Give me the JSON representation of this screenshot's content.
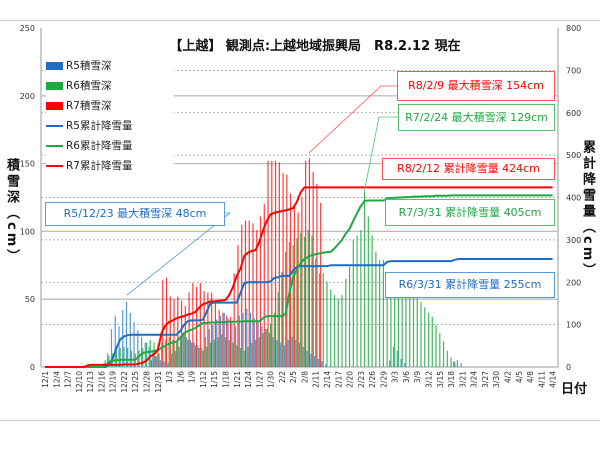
{
  "chart_data": {
    "type": "bar+line",
    "title": "【上越】 観測点:上越地域振興局　R8.2.12 現在",
    "xlabel": "日付",
    "ylabel_left": "積雪深（cm）",
    "ylabel_right": "累計降雪量（cm）",
    "ylim_left": [
      0,
      250
    ],
    "ylim_right": [
      0,
      800
    ],
    "yticks_left": [
      "0",
      "50",
      "100",
      "150",
      "200",
      "250"
    ],
    "yticks_right": [
      "0",
      "100",
      "200",
      "300",
      "400",
      "500",
      "600",
      "700",
      "800"
    ],
    "grid": true,
    "legend_position": "top-left",
    "xtick_labels": [
      "12/1",
      "12/4",
      "12/7",
      "12/10",
      "12/13",
      "12/16",
      "12/19",
      "12/22",
      "12/25",
      "12/28",
      "12/31",
      "1/3",
      "1/6",
      "1/9",
      "1/12",
      "1/15",
      "1/18",
      "1/21",
      "1/24",
      "1/27",
      "1/30",
      "2/2",
      "2/5",
      "2/8",
      "2/11",
      "2/14",
      "2/17",
      "2/20",
      "2/23",
      "2/26",
      "2/29",
      "3/3",
      "3/6",
      "3/9",
      "3/12",
      "3/15",
      "3/18",
      "3/21",
      "3/24",
      "3/27",
      "3/30",
      "4/2",
      "4/5",
      "4/8",
      "4/11",
      "4/14"
    ],
    "x_first_date": "12/1",
    "x_last_date": "4/14",
    "series": [
      {
        "name": "R5積雪深",
        "kind": "bar",
        "axis": "left",
        "color": "#3f8fd8",
        "values": [
          0,
          0,
          0,
          0,
          0,
          0,
          0,
          0,
          0,
          0,
          0,
          0,
          0,
          0,
          0,
          0,
          3,
          10,
          28,
          38,
          30,
          42,
          48,
          40,
          33,
          27,
          22,
          18,
          15,
          12,
          8,
          5,
          4,
          3,
          10,
          12,
          15,
          24,
          22,
          20,
          18,
          16,
          14,
          22,
          28,
          31,
          35,
          38,
          40,
          36,
          33,
          30,
          38,
          40,
          43,
          40,
          36,
          33,
          30,
          28,
          25,
          22,
          20,
          18,
          16,
          20,
          22,
          20,
          18,
          15,
          12,
          10,
          8,
          6,
          4,
          2,
          0,
          0,
          0,
          0,
          0,
          0,
          0,
          0,
          0,
          0,
          0,
          0,
          0,
          0,
          0,
          0,
          5,
          15,
          12,
          6,
          3,
          0,
          0,
          0,
          0,
          0,
          0,
          0,
          0,
          0,
          0,
          0,
          0,
          4,
          5,
          3,
          0,
          0,
          0,
          0,
          0,
          0,
          0,
          0,
          0,
          0,
          0,
          0,
          0,
          0,
          0,
          0,
          0,
          0,
          0,
          0,
          0,
          0,
          0
        ]
      },
      {
        "name": "R6積雪深",
        "kind": "bar",
        "axis": "left",
        "color": "#2fb04f",
        "values": [
          0,
          0,
          0,
          0,
          0,
          0,
          0,
          0,
          0,
          0,
          0,
          0,
          0,
          0,
          0,
          0,
          5,
          8,
          10,
          12,
          14,
          15,
          14,
          12,
          10,
          12,
          14,
          18,
          20,
          18,
          16,
          18,
          20,
          22,
          20,
          18,
          22,
          25,
          20,
          18,
          16,
          14,
          12,
          15,
          18,
          20,
          22,
          24,
          22,
          20,
          18,
          16,
          14,
          12,
          15,
          18,
          20,
          22,
          25,
          28,
          32,
          40,
          55,
          70,
          85,
          92,
          90,
          95,
          99,
          96,
          101,
          97,
          80,
          69,
          69,
          63,
          57,
          53,
          50,
          53,
          65,
          74,
          94,
          97,
          101,
          129,
          111,
          97,
          85,
          79,
          79,
          69,
          64,
          62,
          60,
          59,
          57,
          55,
          53,
          52,
          48,
          44,
          40,
          37,
          31,
          25,
          19,
          12,
          7,
          4,
          0,
          0,
          0,
          0,
          0,
          0,
          0,
          0,
          0,
          0,
          0,
          0,
          0,
          0,
          0,
          0,
          0,
          0,
          0,
          0,
          0,
          0,
          0,
          0,
          0,
          0
        ]
      },
      {
        "name": "R7積雪深",
        "kind": "bar",
        "axis": "left",
        "color": "#ff1a1a",
        "values": [
          0,
          0,
          0,
          0,
          0,
          0,
          0,
          0,
          0,
          0,
          0,
          2,
          0,
          0,
          0,
          0,
          0,
          0,
          0,
          0,
          0,
          0,
          0,
          0,
          0,
          0,
          0,
          0,
          5,
          8,
          10,
          64,
          66,
          52,
          50,
          52,
          49,
          45,
          55,
          62,
          59,
          62,
          56,
          55,
          55,
          48,
          42,
          40,
          38,
          37,
          69,
          90,
          105,
          108,
          108,
          106,
          101,
          111,
          120,
          152,
          152,
          152,
          151,
          143,
          142,
          128,
          120,
          114,
          125,
          152,
          154,
          144,
          135,
          121
        ]
      },
      {
        "name": "R5累計降雪量",
        "kind": "line",
        "axis": "right",
        "color": "#1f6cc4",
        "values": [
          0,
          0,
          0,
          0,
          0,
          0,
          0,
          0,
          0,
          0,
          0,
          0,
          0,
          0,
          0,
          0,
          0,
          5,
          20,
          45,
          65,
          72,
          75,
          76,
          76,
          76,
          76,
          76,
          76,
          76,
          76,
          76,
          76,
          76,
          76,
          76,
          85,
          100,
          108,
          110,
          110,
          110,
          112,
          130,
          150,
          152,
          152,
          152,
          152,
          152,
          152,
          152,
          175,
          198,
          200,
          200,
          200,
          200,
          200,
          200,
          202,
          210,
          212,
          215,
          215,
          215,
          228,
          236,
          238,
          238,
          238,
          238,
          238,
          238,
          238,
          238,
          240,
          240,
          240,
          240,
          240,
          240,
          240,
          240,
          240,
          240,
          240,
          240,
          240,
          240,
          240,
          248,
          250,
          250,
          250,
          250,
          250,
          250,
          250,
          250,
          250,
          250,
          250,
          250,
          250,
          250,
          250,
          250,
          250,
          253,
          255,
          255,
          255,
          255,
          255,
          255,
          255,
          255,
          255,
          255,
          255,
          255,
          255,
          255,
          255,
          255,
          255,
          255,
          255,
          255,
          255,
          255,
          255,
          255,
          255,
          255
        ]
      },
      {
        "name": "R6累計降雪量",
        "kind": "line",
        "axis": "right",
        "color": "#1fa843",
        "values": [
          0,
          0,
          0,
          0,
          0,
          0,
          0,
          0,
          0,
          0,
          0,
          0,
          0,
          0,
          0,
          0,
          3,
          12,
          15,
          16,
          17,
          17,
          17,
          17,
          17,
          25,
          33,
          35,
          36,
          38,
          40,
          45,
          50,
          55,
          58,
          60,
          70,
          80,
          85,
          88,
          92,
          98,
          104,
          104,
          105,
          105,
          106,
          106,
          106,
          107,
          107,
          107,
          107,
          108,
          108,
          108,
          108,
          108,
          115,
          120,
          120,
          120,
          120,
          120,
          125,
          175,
          212,
          230,
          245,
          255,
          260,
          264,
          266,
          268,
          270,
          271,
          272,
          280,
          290,
          300,
          315,
          326,
          345,
          363,
          380,
          392,
          393,
          393,
          393,
          393,
          393,
          398,
          399,
          399,
          400,
          400,
          401,
          401,
          402,
          402,
          402,
          403,
          403,
          403,
          404,
          404,
          404,
          404,
          405,
          405,
          405,
          405,
          405,
          405,
          405,
          405,
          405,
          405,
          405,
          405,
          405,
          405,
          405,
          405,
          405,
          405,
          405,
          405,
          405,
          405,
          405,
          405,
          405,
          405,
          405,
          405
        ]
      },
      {
        "name": "R7累計降雪量",
        "kind": "line",
        "axis": "right",
        "color": "#ff0000",
        "values": [
          0,
          0,
          0,
          0,
          0,
          0,
          0,
          0,
          0,
          0,
          0,
          2,
          5,
          5,
          5,
          5,
          5,
          5,
          5,
          5,
          5,
          6,
          6,
          6,
          6,
          8,
          10,
          15,
          25,
          30,
          40,
          80,
          98,
          106,
          110,
          115,
          118,
          120,
          124,
          126,
          130,
          140,
          148,
          151,
          155,
          155,
          156,
          157,
          158,
          170,
          189,
          215,
          232,
          262,
          270,
          274,
          276,
          295,
          323,
          345,
          360,
          364,
          366,
          368,
          370,
          372,
          375,
          390,
          412,
          424,
          424,
          424,
          424,
          424,
          424,
          424,
          424,
          424,
          424,
          424,
          424,
          424,
          424,
          424,
          424,
          424,
          424,
          424,
          424,
          424,
          424,
          424,
          424,
          424,
          424,
          424,
          424,
          424,
          424,
          424,
          424,
          424,
          424,
          424,
          424,
          424,
          424,
          424,
          424,
          424,
          424,
          424,
          424,
          424,
          424,
          424,
          424,
          424,
          424,
          424,
          424,
          424,
          424,
          424,
          424,
          424,
          424,
          424,
          424,
          424,
          424,
          424,
          424,
          424,
          424,
          424
        ]
      }
    ],
    "annotations": [
      {
        "text": "R8/2/9 最大積雪深  154cm",
        "color": "#ff0000"
      },
      {
        "text": "R7/2/24 最大積雪深 129cm",
        "color": "#1fa843"
      },
      {
        "text": "R8/2/12 累計降雪量 424cm",
        "color": "#ff0000"
      },
      {
        "text": "R7/3/31 累計降雪量 405cm",
        "color": "#1fa843"
      },
      {
        "text": "R6/3/31 累計降雪量 255cm",
        "color": "#1f6cc4"
      },
      {
        "text": "R5/12/23  最大積雪深 48cm",
        "color": "#1f6cc4"
      }
    ]
  }
}
